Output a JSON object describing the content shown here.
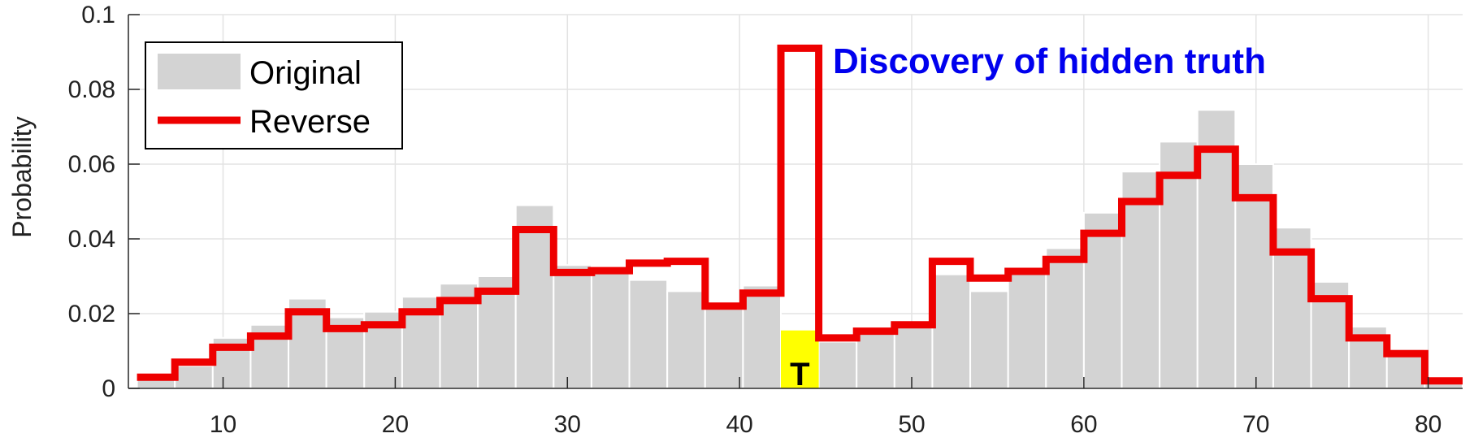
{
  "chart_data": {
    "type": "bar",
    "xlim": [
      4.5,
      82
    ],
    "ylim": [
      0,
      0.1
    ],
    "x_ticks": [
      10,
      20,
      30,
      40,
      50,
      60,
      70,
      80
    ],
    "y_ticks": [
      {
        "value": 0,
        "label": "0"
      },
      {
        "value": 0.02,
        "label": "0.02"
      },
      {
        "value": 0.04,
        "label": "0.04"
      },
      {
        "value": 0.06,
        "label": "0.06"
      },
      {
        "value": 0.08,
        "label": "0.08"
      },
      {
        "value": 0.1,
        "label": "0.1"
      }
    ],
    "ylabel": "Probability",
    "grid": true,
    "legend_position": "top-left",
    "bin_width": 2.2,
    "bin_centers": [
      6.1,
      8.3,
      10.5,
      12.7,
      14.9,
      17.1,
      19.3,
      21.5,
      23.7,
      25.9,
      28.1,
      30.3,
      32.5,
      34.7,
      36.9,
      39.1,
      41.3,
      43.5,
      45.7,
      47.9,
      50.1,
      52.3,
      54.5,
      56.7,
      58.9,
      61.1,
      63.3,
      65.5,
      67.7,
      69.9,
      72.1,
      74.3,
      76.5,
      78.7,
      80.9
    ],
    "series": [
      {
        "name": "Original",
        "kind": "bar",
        "color": "#d3d3d3",
        "values": [
          0.003,
          0.006,
          0.0135,
          0.017,
          0.024,
          0.019,
          0.0205,
          0.0245,
          0.028,
          0.03,
          0.049,
          0.033,
          0.0325,
          0.029,
          0.026,
          0.0215,
          0.0275,
          null,
          0.0125,
          0.015,
          0.017,
          0.0305,
          0.026,
          0.031,
          0.0375,
          0.047,
          0.058,
          0.066,
          0.0745,
          0.06,
          0.043,
          0.0285,
          0.0165,
          0.0105,
          0.002
        ]
      },
      {
        "name": "Reverse",
        "kind": "stairs",
        "color": "#ee0000",
        "values": [
          0.003,
          0.007,
          0.011,
          0.014,
          0.0205,
          0.016,
          0.017,
          0.0205,
          0.0235,
          0.026,
          0.0425,
          0.031,
          0.0315,
          0.0335,
          0.034,
          0.022,
          0.0255,
          0.091,
          0.0135,
          0.0153,
          0.017,
          0.034,
          0.0295,
          0.0313,
          0.0345,
          0.0415,
          0.05,
          0.057,
          0.064,
          0.051,
          0.0365,
          0.024,
          0.0135,
          0.0093,
          0.002
        ]
      }
    ],
    "highlight": {
      "label": "T",
      "x": 43.5,
      "value": 0.0155,
      "color": "#ffff00"
    },
    "annotation": {
      "text": "Discovery of hidden truth",
      "color": "#0000ee"
    }
  }
}
